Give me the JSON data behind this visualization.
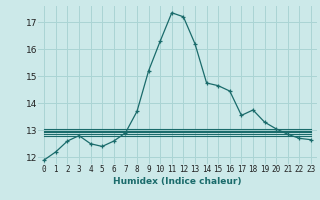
{
  "title": "",
  "xlabel": "Humidex (Indice chaleur)",
  "bg_color": "#cce9e9",
  "grid_color": "#aad4d4",
  "line_color": "#1a6b6b",
  "xlim": [
    -0.5,
    23.5
  ],
  "ylim": [
    11.75,
    17.6
  ],
  "yticks": [
    12,
    13,
    14,
    15,
    16,
    17
  ],
  "xticks": [
    0,
    1,
    2,
    3,
    4,
    5,
    6,
    7,
    8,
    9,
    10,
    11,
    12,
    13,
    14,
    15,
    16,
    17,
    18,
    19,
    20,
    21,
    22,
    23
  ],
  "series": [
    [
      0,
      11.9
    ],
    [
      1,
      12.2
    ],
    [
      2,
      12.6
    ],
    [
      3,
      12.8
    ],
    [
      4,
      12.5
    ],
    [
      5,
      12.4
    ],
    [
      6,
      12.6
    ],
    [
      7,
      12.9
    ],
    [
      8,
      13.7
    ],
    [
      9,
      15.2
    ],
    [
      10,
      16.3
    ],
    [
      11,
      17.35
    ],
    [
      12,
      17.2
    ],
    [
      13,
      16.2
    ],
    [
      14,
      14.75
    ],
    [
      15,
      14.65
    ],
    [
      16,
      14.45
    ],
    [
      17,
      13.55
    ],
    [
      18,
      13.75
    ],
    [
      19,
      13.3
    ],
    [
      20,
      13.05
    ],
    [
      21,
      12.85
    ],
    [
      22,
      12.7
    ],
    [
      23,
      12.65
    ]
  ],
  "flat_lines": [
    {
      "x0": 0,
      "x1": 23,
      "y": 12.78
    },
    {
      "x0": 0,
      "x1": 23,
      "y": 12.85
    },
    {
      "x0": 0,
      "x1": 23,
      "y": 12.92
    },
    {
      "x0": 0,
      "x1": 23,
      "y": 12.99
    },
    {
      "x0": 0,
      "x1": 23,
      "y": 13.05
    }
  ]
}
